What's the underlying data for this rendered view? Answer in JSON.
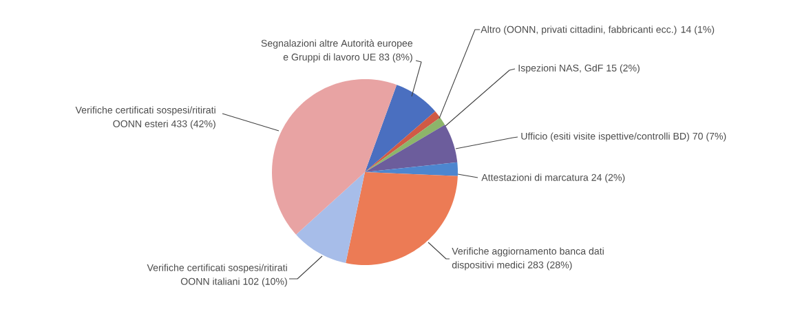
{
  "chart_data": {
    "type": "pie",
    "categories": [
      "Segnalazioni altre Autorità europee e Gruppi di lavoro UE",
      "Altro (OONN, privati cittadini, fabbricanti ecc.)",
      "Ispezioni NAS, GdF",
      "Ufficio (esiti visite ispettive/controlli BD)",
      "Attestazioni di marcatura",
      "Verifiche aggiornamento banca dati dispositivi medici",
      "Verifiche certificati sospesi/ritirati OONN italiani",
      "Verifiche certificati sospesi/ritirati OONN esteri"
    ],
    "values": [
      83,
      14,
      15,
      70,
      24,
      283,
      102,
      433
    ],
    "value_labels": [
      "83 (8%)",
      "14 (1%)",
      "15 (2%)",
      "70 (7%)",
      "24 (2%)",
      "283 (28%)",
      "102 (10%)",
      "433 (42%)"
    ],
    "colors": [
      "#4a6fc0",
      "#d05a45",
      "#8db56a",
      "#6c5d9c",
      "#4d86cf",
      "#ec7b55",
      "#a7bde9",
      "#e8a3a3"
    ]
  }
}
